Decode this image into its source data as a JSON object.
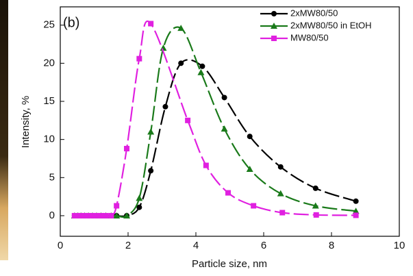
{
  "chart_data": {
    "type": "line",
    "panel_label": "(b)",
    "x_label": "Particle size, nm",
    "y_label": "Intensity, %",
    "xlim": [
      0,
      10
    ],
    "ylim": [
      -2.7,
      27.4
    ],
    "xticks": [
      0,
      2,
      4,
      6,
      8,
      10
    ],
    "yticks": [
      0,
      5,
      10,
      15,
      20,
      25
    ],
    "legend": "upper right",
    "series": [
      {
        "name": "2xMW80/50",
        "color": "#000000",
        "marker": "circle",
        "x": [
          0.42,
          0.52,
          0.61,
          0.72,
          0.83,
          0.95,
          1.07,
          1.2,
          1.34,
          1.5,
          1.66,
          1.96,
          2.33,
          2.67,
          3.1,
          3.56,
          4.19,
          4.84,
          5.59,
          6.5,
          7.53,
          8.72
        ],
        "values": [
          0,
          0,
          0,
          0,
          0,
          0,
          0,
          0,
          0,
          0,
          0,
          0,
          1.1,
          5.9,
          14.3,
          20,
          19.6,
          15.5,
          10.4,
          6.4,
          3.6,
          1.9
        ]
      },
      {
        "name": "2xMW80/50 in EtOH",
        "color": "#1a7a1a",
        "marker": "triangle",
        "x": [
          0.42,
          0.52,
          0.61,
          0.72,
          0.83,
          0.95,
          1.07,
          1.2,
          1.34,
          1.5,
          1.66,
          1.96,
          2.33,
          2.67,
          3.04,
          3.56,
          4.15,
          4.84,
          5.59,
          6.5,
          7.53,
          8.72
        ],
        "values": [
          0,
          0,
          0,
          0,
          0,
          0,
          0,
          0,
          0,
          0,
          0,
          0,
          2.3,
          11,
          22,
          24.6,
          18.8,
          11.4,
          6.1,
          2.9,
          1.3,
          0.6
        ]
      },
      {
        "name": "MW80/50",
        "color": "#e020e0",
        "marker": "square",
        "x": [
          0.42,
          0.52,
          0.61,
          0.72,
          0.83,
          0.95,
          1.07,
          1.2,
          1.34,
          1.5,
          1.66,
          1.96,
          2.33,
          2.67,
          3.76,
          4.3,
          4.95,
          5.7,
          6.55,
          7.55,
          8.72
        ],
        "values": [
          0,
          0,
          0,
          0,
          0,
          0,
          0,
          0,
          0,
          0,
          1.3,
          8.8,
          20.6,
          25.2,
          12.5,
          6.6,
          3.0,
          1.3,
          0.4,
          0.1,
          0.05
        ]
      }
    ]
  }
}
